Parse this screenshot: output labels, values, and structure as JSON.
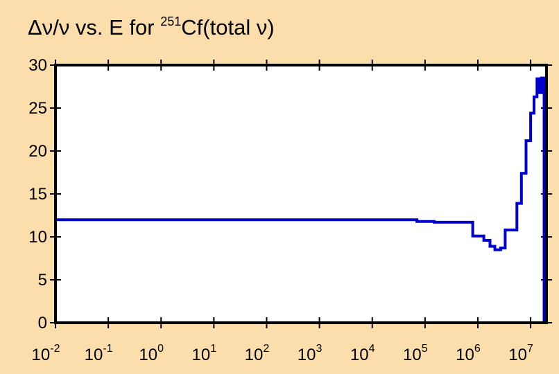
{
  "chart_data": {
    "type": "line",
    "title_parts": {
      "prefix": "Δν/ν vs. E for ",
      "isotope_mass": "251",
      "suffix": "Cf(total ν)"
    },
    "title": "Δν/ν vs. E for 251Cf(total ν)",
    "xlabel": "",
    "ylabel": "",
    "x_scale": "log",
    "xlim": [
      0.01,
      20000000
    ],
    "ylim": [
      0,
      30
    ],
    "grid": false,
    "x_ticks": [
      {
        "base": "10",
        "exp": "-2",
        "value": 0.01
      },
      {
        "base": "10",
        "exp": "-1",
        "value": 0.1
      },
      {
        "base": "10",
        "exp": "0",
        "value": 1
      },
      {
        "base": "10",
        "exp": "1",
        "value": 10
      },
      {
        "base": "10",
        "exp": "2",
        "value": 100
      },
      {
        "base": "10",
        "exp": "3",
        "value": 1000
      },
      {
        "base": "10",
        "exp": "4",
        "value": 10000
      },
      {
        "base": "10",
        "exp": "5",
        "value": 100000
      },
      {
        "base": "10",
        "exp": "6",
        "value": 1000000
      },
      {
        "base": "10",
        "exp": "7",
        "value": 10000000
      }
    ],
    "y_ticks": [
      {
        "label": "0",
        "value": 0
      },
      {
        "label": "5",
        "value": 5
      },
      {
        "label": "10",
        "value": 10
      },
      {
        "label": "15",
        "value": 15
      },
      {
        "label": "20",
        "value": 20
      },
      {
        "label": "25",
        "value": 25
      },
      {
        "label": "30",
        "value": 30
      }
    ],
    "series": [
      {
        "color": "#0000cc",
        "style": "step",
        "x": [
          0.01,
          0.01,
          10000,
          70000,
          70000,
          150000,
          150000,
          800000,
          800000,
          1300000,
          1300000,
          1700000,
          1700000,
          2100000,
          2100000,
          2700000,
          2700000,
          3300000,
          3300000,
          5500000,
          5500000,
          6700000,
          6700000,
          8200000,
          8200000,
          10000000,
          10000000,
          11600000,
          11600000,
          13200000,
          13200000,
          14600000,
          14600000,
          16000000,
          16000000,
          17000000,
          17000000,
          18000000,
          18000000
        ],
        "y": [
          0,
          12.0,
          12.0,
          12.0,
          11.8,
          11.8,
          11.7,
          11.7,
          10.1,
          10.1,
          9.6,
          9.6,
          8.9,
          8.9,
          8.5,
          8.5,
          8.7,
          8.7,
          10.8,
          10.8,
          13.9,
          13.9,
          17.4,
          17.4,
          21.2,
          21.2,
          24.4,
          24.4,
          26.3,
          26.3,
          28.4,
          28.4,
          26.8,
          26.8,
          28.5,
          28.5,
          28.5,
          28.5,
          0
        ]
      }
    ]
  }
}
